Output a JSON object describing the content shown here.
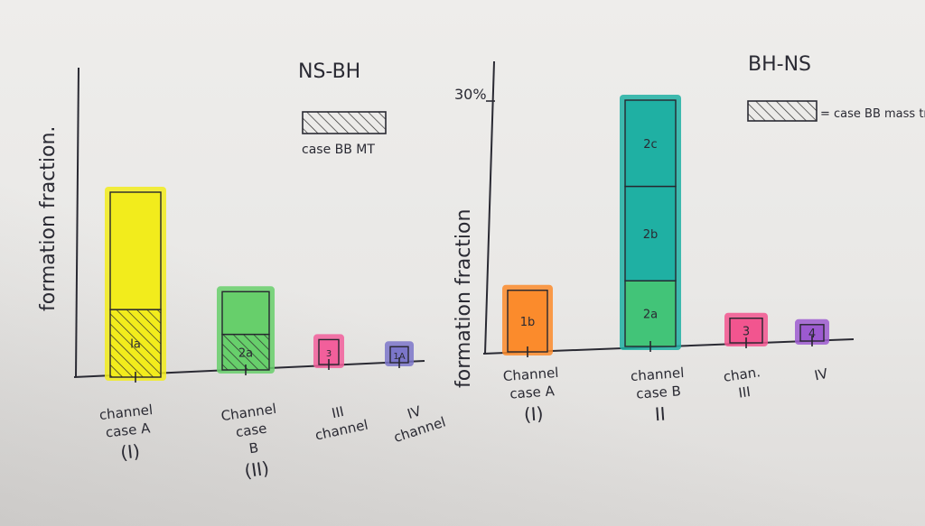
{
  "chart_data": [
    {
      "type": "bar",
      "stacked": true,
      "title": "NS-BH",
      "ylabel": "formation fraction.",
      "legend": {
        "label": "case BB MT",
        "style": "hatched",
        "placement": "top-right"
      },
      "categories": [
        {
          "lines": [
            "channel",
            "case A"
          ],
          "roman": "(I)"
        },
        {
          "lines": [
            "Channel",
            "case",
            "B"
          ],
          "roman": "(II)"
        },
        {
          "lines": [
            "III",
            "channel"
          ],
          "roman": ""
        },
        {
          "lines": [
            "IV",
            "channel"
          ],
          "roman": ""
        }
      ],
      "bars": [
        {
          "total": 0.52,
          "color": "#f2ec1c",
          "segments": [
            {
              "label": "Ia",
              "value": 0.19,
              "hatched": true
            },
            {
              "label": "",
              "value": 0.33,
              "hatched": false
            }
          ]
        },
        {
          "total": 0.22,
          "color": "#67cf6b",
          "segments": [
            {
              "label": "2a",
              "value": 0.1,
              "hatched": true
            },
            {
              "label": "",
              "value": 0.12,
              "hatched": false
            }
          ]
        },
        {
          "total": 0.07,
          "color": "#f25f9b",
          "segments": [
            {
              "label": "3",
              "value": 0.07,
              "hatched": false
            }
          ]
        },
        {
          "total": 0.045,
          "color": "#7b76c9",
          "segments": [
            {
              "label": "1A",
              "value": 0.045,
              "hatched": false
            }
          ]
        }
      ]
    },
    {
      "type": "bar",
      "stacked": true,
      "title": "BH-NS",
      "ylabel": "formation fraction",
      "ytick": {
        "value": 30,
        "label": "30%"
      },
      "legend": {
        "label": "= case BB mass transfer",
        "style": "hatched",
        "placement": "top-right"
      },
      "categories": [
        {
          "lines": [
            "Channel",
            "case A"
          ],
          "roman": "(I)"
        },
        {
          "lines": [
            "channel",
            "case B"
          ],
          "roman": "II"
        },
        {
          "lines": [
            "chan.",
            "III"
          ],
          "roman": ""
        },
        {
          "lines": [
            "IV"
          ],
          "roman": ""
        }
      ],
      "bars": [
        {
          "total": 7.5,
          "color": "#fb8b2c",
          "segments": [
            {
              "label": "1b",
              "value": 7.5,
              "hatched": false
            }
          ]
        },
        {
          "total": 30,
          "color": "#1fb0a3",
          "segments": [
            {
              "label": "2a",
              "value": 8,
              "hatched": false,
              "color": "#42c478"
            },
            {
              "label": "2b",
              "value": 11.5,
              "hatched": false
            },
            {
              "label": "2c",
              "value": 10.5,
              "hatched": false
            }
          ]
        },
        {
          "total": 3.0,
          "color": "#f2558f",
          "segments": [
            {
              "label": "3",
              "value": 3.0,
              "hatched": false
            }
          ]
        },
        {
          "total": 2.0,
          "color": "#9c5ad0",
          "segments": [
            {
              "label": "4",
              "value": 2.0,
              "hatched": false
            }
          ]
        }
      ]
    }
  ]
}
